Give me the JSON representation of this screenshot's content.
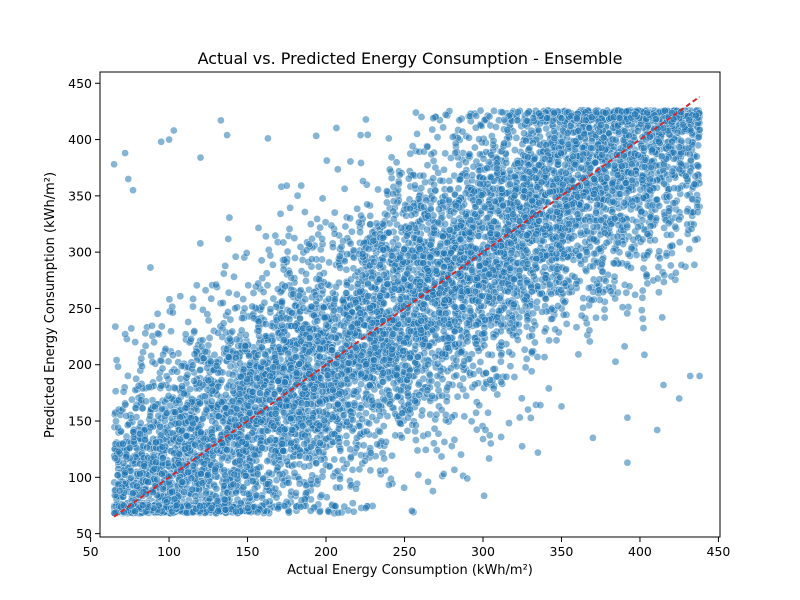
{
  "chart_data": {
    "type": "scatter",
    "title": "Actual vs. Predicted Energy Consumption - Ensemble",
    "xlabel": "Actual Energy Consumption (kWh/m²)",
    "ylabel": "Predicted Energy Consumption (kWh/m²)",
    "xlim": [
      56,
      451
    ],
    "ylim": [
      47,
      460
    ],
    "xticks": [
      50,
      100,
      150,
      200,
      250,
      300,
      350,
      400,
      450
    ],
    "yticks": [
      50,
      100,
      150,
      200,
      250,
      300,
      350,
      400,
      450
    ],
    "grid": false,
    "point_color": "#1f77b4",
    "point_edge_color": "#ffffff",
    "point_alpha": 0.55,
    "reference_line": {
      "x": [
        65,
        438
      ],
      "y": [
        65,
        438
      ],
      "color": "#d62728",
      "style": "dashed"
    },
    "points_summary": {
      "count_estimate": 20000,
      "x_range": [
        65,
        438
      ],
      "relation": "predicted approximately equal to actual with wide scatter",
      "spread_sd": 60,
      "predicted_floor": 68,
      "predicted_cap": 426
    },
    "outliers": [
      {
        "x": 65,
        "y": 378
      },
      {
        "x": 72,
        "y": 388
      },
      {
        "x": 74,
        "y": 365
      },
      {
        "x": 77,
        "y": 355
      },
      {
        "x": 95,
        "y": 398
      },
      {
        "x": 100,
        "y": 400
      },
      {
        "x": 103,
        "y": 408
      },
      {
        "x": 120,
        "y": 384
      },
      {
        "x": 133,
        "y": 417
      },
      {
        "x": 137,
        "y": 404
      },
      {
        "x": 163,
        "y": 401
      },
      {
        "x": 222,
        "y": 404
      },
      {
        "x": 240,
        "y": 401
      },
      {
        "x": 258,
        "y": 405
      },
      {
        "x": 322,
        "y": 417
      },
      {
        "x": 350,
        "y": 419
      },
      {
        "x": 265,
        "y": 96
      },
      {
        "x": 275,
        "y": 103
      },
      {
        "x": 290,
        "y": 99
      },
      {
        "x": 300,
        "y": 134
      },
      {
        "x": 305,
        "y": 130
      },
      {
        "x": 335,
        "y": 122
      },
      {
        "x": 370,
        "y": 135
      },
      {
        "x": 392,
        "y": 113
      },
      {
        "x": 411,
        "y": 142
      },
      {
        "x": 425,
        "y": 170
      },
      {
        "x": 432,
        "y": 190
      },
      {
        "x": 438,
        "y": 190
      },
      {
        "x": 415,
        "y": 182
      },
      {
        "x": 392,
        "y": 153
      },
      {
        "x": 350,
        "y": 163
      }
    ]
  }
}
